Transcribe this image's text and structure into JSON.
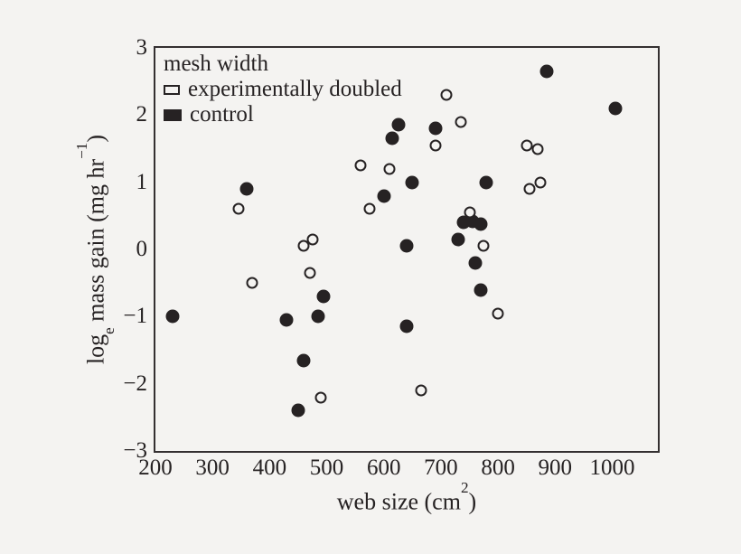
{
  "figure": {
    "background": "#f4f3f1",
    "ink": "#262223"
  },
  "chart_data": {
    "type": "scatter",
    "title": "",
    "xlabel": {
      "pre": "web size (cm",
      "sup": "2",
      "post": ")"
    },
    "ylabel": {
      "pre": "log",
      "sub": "e",
      "mid": " mass gain (mg hr",
      "sup": "−1",
      "post": ")"
    },
    "xlim": [
      200,
      1080
    ],
    "ylim": [
      -3,
      3
    ],
    "grid": false,
    "xticks": [
      {
        "value": 200,
        "label": "200"
      },
      {
        "value": 300,
        "label": "300"
      },
      {
        "value": 400,
        "label": "400"
      },
      {
        "value": 500,
        "label": "500"
      },
      {
        "value": 600,
        "label": "600"
      },
      {
        "value": 700,
        "label": "700"
      },
      {
        "value": 800,
        "label": "800"
      },
      {
        "value": 900,
        "label": "900"
      },
      {
        "value": 1000,
        "label": "1000"
      }
    ],
    "yticks": [
      {
        "value": 3,
        "label": "3"
      },
      {
        "value": 2,
        "label": "2"
      },
      {
        "value": 1,
        "label": "1"
      },
      {
        "value": 0,
        "label": "0"
      },
      {
        "value": -1,
        "label": "−1"
      },
      {
        "value": -2,
        "label": "−2"
      },
      {
        "value": -3,
        "label": "−3"
      }
    ],
    "legend": {
      "title": "mesh width",
      "position": "top-left",
      "items": [
        {
          "label": "experimentally doubled",
          "marker": "open-rect"
        },
        {
          "label": "control",
          "marker": "filled-rect"
        }
      ]
    },
    "series": [
      {
        "name": "experimentally doubled",
        "marker": "open-circle",
        "points": [
          [
            345,
            0.6
          ],
          [
            370,
            -0.5
          ],
          [
            460,
            0.05
          ],
          [
            470,
            -0.35
          ],
          [
            475,
            0.15
          ],
          [
            490,
            -2.2
          ],
          [
            560,
            1.25
          ],
          [
            575,
            0.6
          ],
          [
            610,
            1.2
          ],
          [
            665,
            -2.1
          ],
          [
            690,
            1.55
          ],
          [
            710,
            2.3
          ],
          [
            735,
            1.9
          ],
          [
            750,
            0.55
          ],
          [
            775,
            0.05
          ],
          [
            800,
            -0.95
          ],
          [
            850,
            1.55
          ],
          [
            855,
            0.9
          ],
          [
            870,
            1.5
          ],
          [
            875,
            1.0
          ]
        ]
      },
      {
        "name": "control",
        "marker": "filled-circle",
        "points": [
          [
            230,
            -1.0
          ],
          [
            360,
            0.9
          ],
          [
            430,
            -1.05
          ],
          [
            450,
            -2.4
          ],
          [
            460,
            -1.65
          ],
          [
            485,
            -1.0
          ],
          [
            495,
            -0.7
          ],
          [
            600,
            0.8
          ],
          [
            615,
            1.65
          ],
          [
            625,
            1.85
          ],
          [
            640,
            0.05
          ],
          [
            640,
            -1.15
          ],
          [
            650,
            1.0
          ],
          [
            690,
            1.8
          ],
          [
            730,
            0.15
          ],
          [
            740,
            0.4
          ],
          [
            755,
            0.42
          ],
          [
            770,
            0.38
          ],
          [
            760,
            -0.2
          ],
          [
            770,
            -0.6
          ],
          [
            780,
            1.0
          ],
          [
            885,
            2.65
          ],
          [
            1005,
            2.1
          ]
        ]
      }
    ]
  }
}
